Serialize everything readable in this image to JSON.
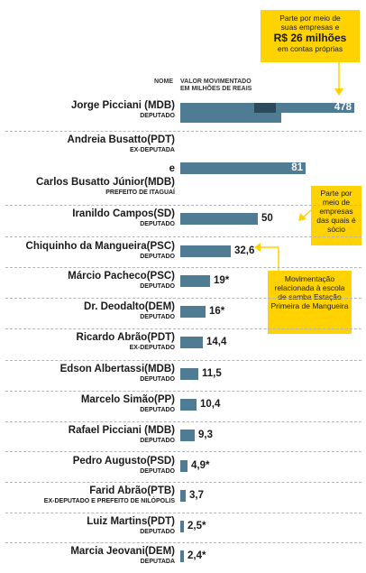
{
  "headers": {
    "name": "NOME",
    "value_line1": "VALOR MOVIMENTADO",
    "value_line2": "EM MILHÕES DE REAIS"
  },
  "notes": {
    "picciani": {
      "line1": "Parte por meio de",
      "line2": "suas empresas e",
      "amount": "R$ 26 milhões",
      "line4": "em contas próprias"
    },
    "iranildo": {
      "text": "Parte por meio de empresas das quais é sócio"
    },
    "chiquinho": {
      "text": "Movimentação relacionada à escola de samba Estação Primeira de Mangueira"
    }
  },
  "connector": "e",
  "colors": {
    "bar": "#4f7b93",
    "bar_dark": "#2b4a5c",
    "note": "#ffd200",
    "separator": "#b5b5b5"
  },
  "chart_data": {
    "type": "bar",
    "orientation": "horizontal",
    "xlabel": "VALOR MOVIMENTADO EM MILHÕES DE REAIS",
    "rows": [
      {
        "names": [
          "Jorge Picciani (MDB)"
        ],
        "roles": [
          "DEPUTADO"
        ],
        "value": 478,
        "label": "478"
      },
      {
        "names": [
          "Andreia Busatto(PDT)",
          "Carlos Busatto Júnior(MDB)"
        ],
        "roles": [
          "EX-DEPUTADA",
          "PREFEITO DE ITAGUAÍ"
        ],
        "value": 81,
        "label": "81"
      },
      {
        "names": [
          "Iranildo Campos(SD)"
        ],
        "roles": [
          "DEPUTADO"
        ],
        "value": 50,
        "label": "50"
      },
      {
        "names": [
          "Chiquinho da Mangueira(PSC)"
        ],
        "roles": [
          "DEPUTADO"
        ],
        "value": 32.6,
        "label": "32,6"
      },
      {
        "names": [
          "Márcio Pacheco(PSC)"
        ],
        "roles": [
          "DEPUTADO"
        ],
        "value": 19,
        "label": "19*"
      },
      {
        "names": [
          "Dr. Deodalto(DEM)"
        ],
        "roles": [
          "DEPUTADO"
        ],
        "value": 16,
        "label": "16*"
      },
      {
        "names": [
          "Ricardo Abrão(PDT)"
        ],
        "roles": [
          "EX-DEPUTADO"
        ],
        "value": 14.4,
        "label": "14,4"
      },
      {
        "names": [
          "Edson Albertassi(MDB)"
        ],
        "roles": [
          "DEPUTADO"
        ],
        "value": 11.5,
        "label": "11,5"
      },
      {
        "names": [
          "Marcelo Simão(PP)"
        ],
        "roles": [
          "DEPUTADO"
        ],
        "value": 10.4,
        "label": "10,4"
      },
      {
        "names": [
          "Rafael Picciani (MDB)"
        ],
        "roles": [
          "DEPUTADO"
        ],
        "value": 9.3,
        "label": "9,3"
      },
      {
        "names": [
          "Pedro Augusto(PSD)"
        ],
        "roles": [
          "DEPUTADO"
        ],
        "value": 4.9,
        "label": "4,9*"
      },
      {
        "names": [
          "Farid Abrão(PTB)"
        ],
        "roles": [
          "EX-DEPUTADO E PREFEITO DE NILÓPOLIS"
        ],
        "value": 3.7,
        "label": "3,7"
      },
      {
        "names": [
          "Luiz Martins(PDT)"
        ],
        "roles": [
          "DEPUTADO"
        ],
        "value": 2.5,
        "label": "2,5*"
      },
      {
        "names": [
          "Marcia Jeovani(DEM)"
        ],
        "roles": [
          "DEPUTADA"
        ],
        "value": 2.4,
        "label": "2,4*"
      }
    ]
  }
}
